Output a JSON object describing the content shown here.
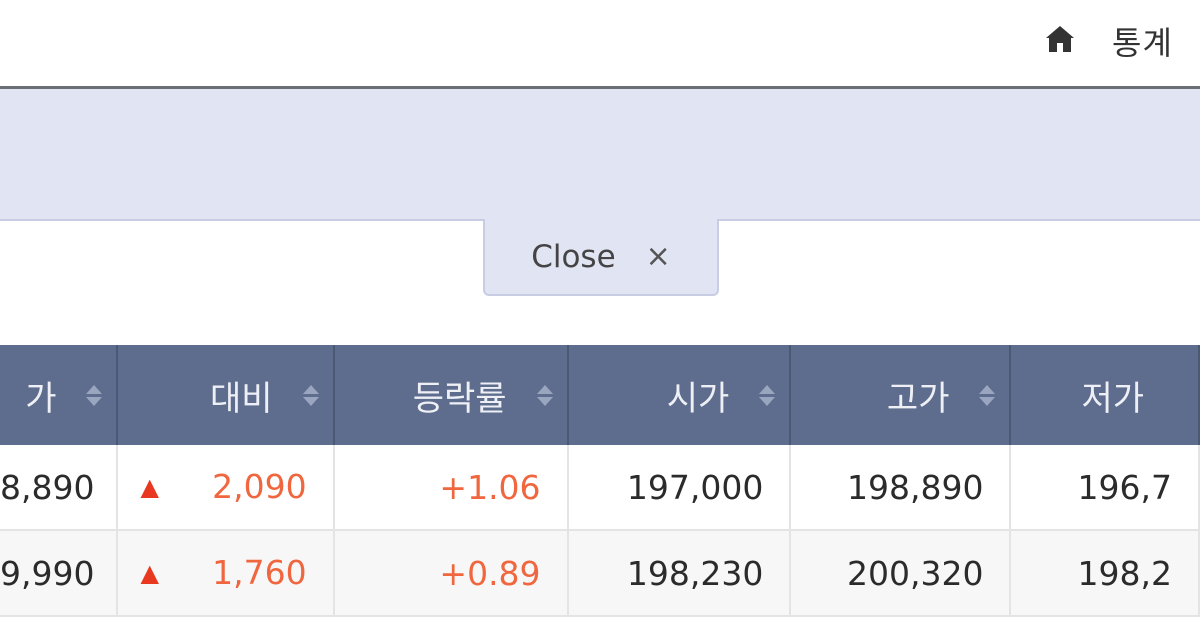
{
  "header": {
    "breadcrumb": "통계",
    "home_icon": "home-icon"
  },
  "panel": {
    "close_label": "Close",
    "close_icon": "×"
  },
  "table": {
    "columns": [
      "가",
      "대비",
      "등락률",
      "시가",
      "고가",
      "저가"
    ],
    "rows": [
      {
        "price": "8,890",
        "change_dir": "up",
        "change": "2,090",
        "rate": "+1.06",
        "open": "197,000",
        "high": "198,890",
        "low": "196,7"
      },
      {
        "price": "9,990",
        "change_dir": "up",
        "change": "1,760",
        "rate": "+0.89",
        "open": "198,230",
        "high": "200,320",
        "low": "198,2"
      }
    ],
    "up_symbol": "▲"
  },
  "colors": {
    "header_bg": "#5e6c8d",
    "panel_bg": "#e1e4f3",
    "up_red": "#f0673f"
  }
}
